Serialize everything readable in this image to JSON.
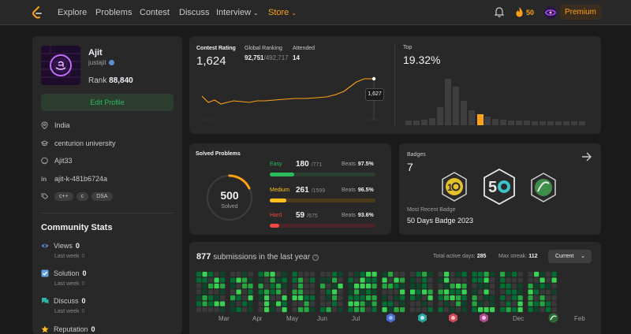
{
  "nav": {
    "links": [
      "Explore",
      "Problems",
      "Contest",
      "Discuss",
      "Interview",
      "Store"
    ],
    "streak": "50",
    "premium": "Premium",
    "icons": [
      "logo-icon",
      "bell-icon",
      "fire-icon",
      "avatar"
    ]
  },
  "profile": {
    "name": "Ajit",
    "username": "justajit",
    "rank_label": "Rank",
    "rank_value": "88,840",
    "edit_label": "Edit Profile",
    "location": "India",
    "school": "centurion university",
    "github": "Ajit33",
    "linkedin": "ajit-k-481b6724a",
    "skills": [
      "c++",
      "c",
      "DSA"
    ]
  },
  "community": {
    "title": "Community Stats",
    "stats": [
      {
        "label": "Views",
        "value": "0",
        "sub": "Last week",
        "delta": "0"
      },
      {
        "label": "Solution",
        "value": "0",
        "sub": "Last week",
        "delta": "0"
      },
      {
        "label": "Discuss",
        "value": "0",
        "sub": "Last week",
        "delta": "0"
      },
      {
        "label": "Reputation",
        "value": "0"
      }
    ]
  },
  "contest": {
    "rating_label": "Contest Rating",
    "rating": "1,624",
    "global_label": "Global Ranking",
    "global_rank": "92,751",
    "global_total": "/492,717",
    "attended_label": "Attended",
    "attended": "14",
    "tooltip": "1,627",
    "top_label": "Top",
    "top_value": "19.32%"
  },
  "solved": {
    "title": "Solved Problems",
    "total": "500",
    "total_label": "Solved",
    "easy": {
      "label": "Easy",
      "count": "180",
      "total": "/771",
      "beats_label": "Beats",
      "beats": "97.5%",
      "fraction": 0.233,
      "color": "#2cbb5d",
      "track": "#2a3d2f"
    },
    "medium": {
      "label": "Medium",
      "count": "261",
      "total": "/1599",
      "beats_label": "Beats",
      "beats": "96.5%",
      "fraction": 0.163,
      "color": "#ffc01e",
      "track": "#4a3c1a"
    },
    "hard": {
      "label": "Hard",
      "count": "59",
      "total": "/675",
      "beats_label": "Beats",
      "beats": "93.6%",
      "fraction": 0.087,
      "color": "#ef4743",
      "track": "#4a2426"
    }
  },
  "badges": {
    "title": "Badges",
    "count": "7",
    "recent_label": "Most Recent Badge",
    "recent_name": "50 Days Badge 2023"
  },
  "submissions": {
    "count": "877",
    "label": "submissions in the last year",
    "active_label": "Total active days:",
    "active_days": "285",
    "streak_label": "Max streak:",
    "max_streak": "112",
    "filter": "Current",
    "months": [
      "Mar",
      "Apr",
      "May",
      "Jun",
      "Jul",
      "Dec",
      "Feb"
    ]
  },
  "colors": {
    "accent": "#ffa116",
    "easy": "#2cbb5d",
    "medium": "#ffc01e",
    "hard": "#ef4743",
    "card": "#282828",
    "bg": "#1a1a1a"
  }
}
